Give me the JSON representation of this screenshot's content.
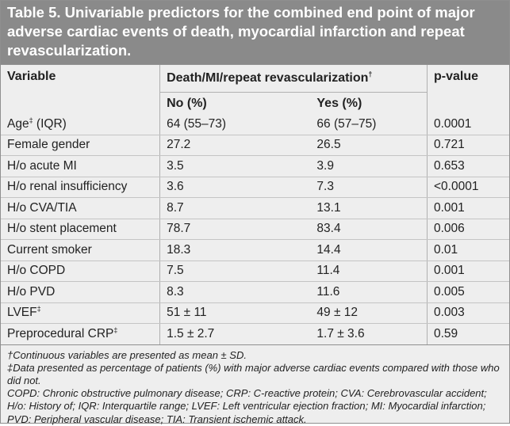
{
  "title": "Table 5. Univariable predictors for the combined end point of major adverse cardiac events of death, myocardial infarction and repeat revascularization.",
  "header": {
    "variable": "Variable",
    "group": "Death/MI/repeat revascularization",
    "group_mark": "†",
    "pvalue": "p-value",
    "no": "No (%)",
    "yes": "Yes (%)"
  },
  "rows": [
    {
      "label": "Age",
      "mark": "‡",
      "suffix": " (IQR)",
      "no": "64 (55–73)",
      "yes": "66 (57–75)",
      "p": "0.0001"
    },
    {
      "label": "Female gender",
      "mark": "",
      "suffix": "",
      "no": "27.2",
      "yes": "26.5",
      "p": "0.721"
    },
    {
      "label": "H/o acute MI",
      "mark": "",
      "suffix": "",
      "no": "3.5",
      "yes": "3.9",
      "p": "0.653"
    },
    {
      "label": "H/o renal insufficiency",
      "mark": "",
      "suffix": "",
      "no": "3.6",
      "yes": "7.3",
      "p": "<0.0001"
    },
    {
      "label": "H/o CVA/TIA",
      "mark": "",
      "suffix": "",
      "no": "8.7",
      "yes": "13.1",
      "p": "0.001"
    },
    {
      "label": "H/o stent placement",
      "mark": "",
      "suffix": "",
      "no": "78.7",
      "yes": "83.4",
      "p": "0.006"
    },
    {
      "label": "Current smoker",
      "mark": "",
      "suffix": "",
      "no": "18.3",
      "yes": "14.4",
      "p": "0.01"
    },
    {
      "label": "H/o COPD",
      "mark": "",
      "suffix": "",
      "no": "7.5",
      "yes": "11.4",
      "p": "0.001"
    },
    {
      "label": "H/o PVD",
      "mark": "",
      "suffix": "",
      "no": "8.3",
      "yes": "11.6",
      "p": "0.005"
    },
    {
      "label": "LVEF",
      "mark": "‡",
      "suffix": "",
      "no": "51 ± 11",
      "yes": "49 ± 12",
      "p": "0.003"
    },
    {
      "label": "Preprocedural CRP",
      "mark": "‡",
      "suffix": "",
      "no": "1.5 ± 2.7",
      "yes": "1.7 ± 3.6",
      "p": "0.59"
    }
  ],
  "footnotes": {
    "dagger": "†Continuous variables are presented as mean ± SD.",
    "ddagger": "‡Data presented as percentage of patients (%) with major adverse cardiac events compared with those who did not.",
    "abbrev": "COPD: Chronic obstructive pulmonary disease; CRP: C-reactive protein; CVA: Cerebrovascular accident; H/o: History of; IQR: Interquartile range; LVEF: Left ventricular ejection fraction; MI: Myocardial infarction; PVD: Peripheral vascular disease; TIA: Transient ischemic attack."
  }
}
